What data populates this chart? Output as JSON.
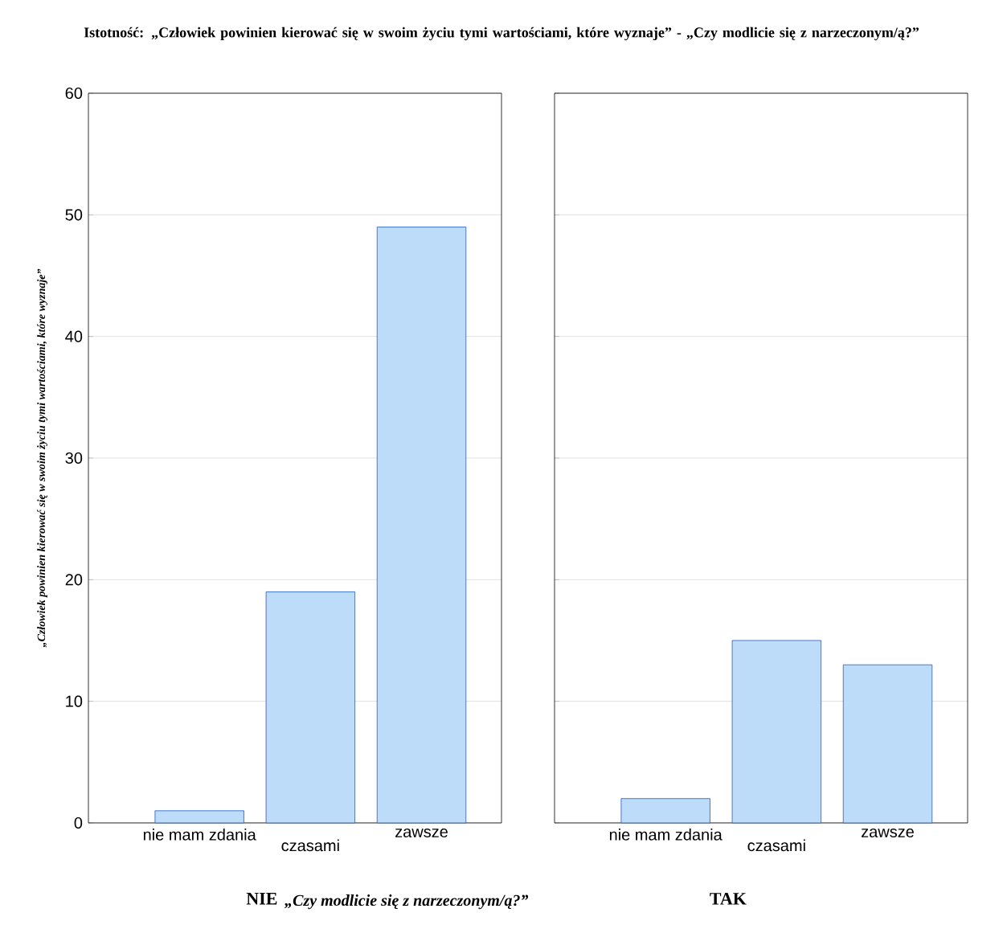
{
  "chart_data": [
    {
      "type": "bar",
      "title": "Istotność: „Człowiek powinien kierować się w swoim życiu tymi wartościami, które wyznaje” - „Czy modlicie się  z narzeczonym/ą?”",
      "ylabel": "„Człowiek powinien kierować się w swoim życiu tymi wartościami, które wyznaje”",
      "xlabel": "NIE",
      "annotations": [
        "„Czy modlicie się  z narzeczonym/ą?”"
      ],
      "categories": [
        "nie mam zdania",
        "czasami",
        "zawsze"
      ],
      "values": [
        1,
        19,
        49
      ],
      "color": "#bcdcfa",
      "ylim": [
        0,
        60
      ],
      "yticks": [
        0,
        10,
        20,
        30,
        40,
        50,
        60
      ],
      "grid": "y"
    },
    {
      "type": "bar",
      "xlabel": "TAK",
      "categories": [
        "nie mam zdania",
        "czasami",
        "zawsze"
      ],
      "values": [
        2,
        15,
        13
      ],
      "color": "#bcdcfa",
      "ylim": [
        0,
        60
      ],
      "yticks": [
        0,
        10,
        20,
        30,
        40,
        50,
        60
      ],
      "grid": "y",
      "tick_labels": "x"
    }
  ]
}
